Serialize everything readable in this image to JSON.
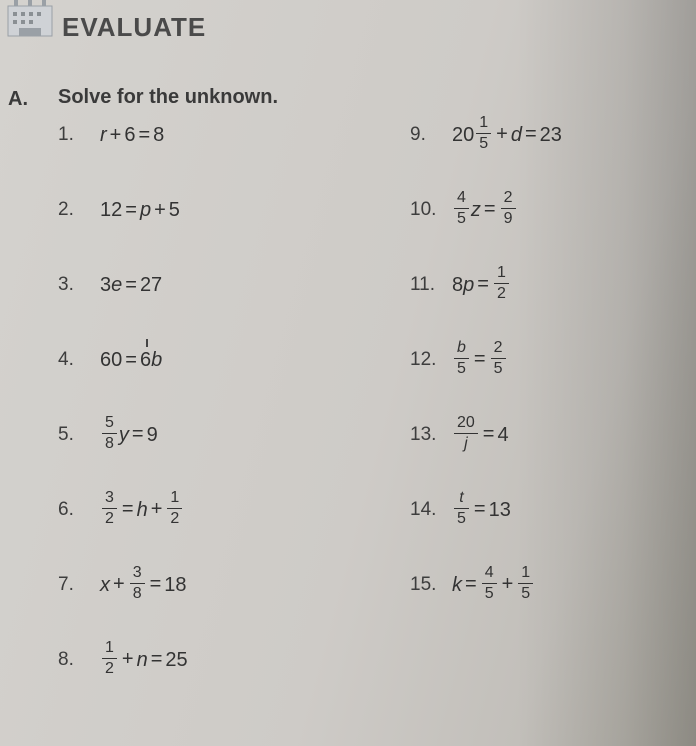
{
  "heading": "EVALUATE",
  "section_label": "A.",
  "instruction": "Solve for the unknown.",
  "left": [
    {
      "num": "1.",
      "html": "<i>r</i><span class='op'>+</span><span class='n'>6</span><span class='op'>=</span><span class='n'>8</span>"
    },
    {
      "num": "2.",
      "html": "<span class='n'>12</span><span class='op'>=</span><i>p</i><span class='op'>+</span><span class='n'>5</span>"
    },
    {
      "num": "3.",
      "html": "<span class='n'>3</span><i>e</i><span class='op'>=</span><span class='n'>27</span>"
    },
    {
      "num": "4.",
      "html": "<span class='n'>60</span><span class='op'>=</span><span class='tick'><span class='n'>6</span><i>b</i></span>"
    },
    {
      "num": "5.",
      "html": "<span class='frac'><span class='fn nn'>5</span><span class='bar'></span><span class='fd nn'>8</span></span><i>y</i><span class='op'>=</span><span class='n'>9</span>"
    },
    {
      "num": "6.",
      "html": "<span class='frac'><span class='fn nn'>3</span><span class='bar'></span><span class='fd nn'>2</span></span><span class='op'>=</span><i>h</i><span class='op'>+</span><span class='frac'><span class='fn nn'>1</span><span class='bar'></span><span class='fd nn'>2</span></span>"
    },
    {
      "num": "7.",
      "html": "<i>x</i><span class='op'>+</span><span class='frac'><span class='fn nn'>3</span><span class='bar'></span><span class='fd nn'>8</span></span><span class='op'>=</span><span class='n'>18</span>"
    },
    {
      "num": "8.",
      "html": "<span class='frac'><span class='fn nn'>1</span><span class='bar'></span><span class='fd nn'>2</span></span><span class='op'>+</span><i>n</i><span class='op'>=</span><span class='n'>25</span>"
    }
  ],
  "right": [
    {
      "num": "9.",
      "html": "<span class='n'>20</span><span class='frac'><span class='fn nn'>1</span><span class='bar'></span><span class='fd nn'>5</span></span><span class='op'>+</span><i>d</i><span class='op'>=</span><span class='n'>23</span>"
    },
    {
      "num": "10.",
      "html": "<span class='frac'><span class='fn nn'>4</span><span class='bar'></span><span class='fd nn'>5</span></span><i>z</i><span class='op'>=</span><span class='frac'><span class='fn nn'>2</span><span class='bar'></span><span class='fd nn'>9</span></span>"
    },
    {
      "num": "11.",
      "html": "<span class='n'>8</span><i>p</i><span class='op'>=</span><span class='frac'><span class='fn nn'>1</span><span class='bar'></span><span class='fd nn'>2</span></span>"
    },
    {
      "num": "12.",
      "html": "<span class='frac'><span class='fn'>b</span><span class='bar'></span><span class='fd nn'>5</span></span><span class='op'>=</span><span class='frac'><span class='fn nn'>2</span><span class='bar'></span><span class='fd nn'>5</span></span>"
    },
    {
      "num": "13.",
      "html": "<span class='frac'><span class='fn nn'>20</span><span class='bar'></span><span class='fd'>j</span></span><span class='op'>=</span><span class='n'>4</span>"
    },
    {
      "num": "14.",
      "html": "<span class='frac'><span class='fn'>t</span><span class='bar'></span><span class='fd nn'>5</span></span><span class='op'>=</span><span class='n'>13</span>"
    },
    {
      "num": "15.",
      "html": "<i>k</i><span class='op'>=</span><span class='frac'><span class='fn nn'>4</span><span class='bar'></span><span class='fd nn'>5</span></span><span class='op'>+</span><span class='frac'><span class='fn nn'>1</span><span class='bar'></span><span class='fd nn'>5</span></span>"
    }
  ],
  "colors": {
    "text": "#3c3c3c",
    "bg_left": "#d4d2ce",
    "bg_right": "#aba89f"
  },
  "fontsize": {
    "heading": 26,
    "instruction": 20,
    "body": 20,
    "frac": 16
  }
}
